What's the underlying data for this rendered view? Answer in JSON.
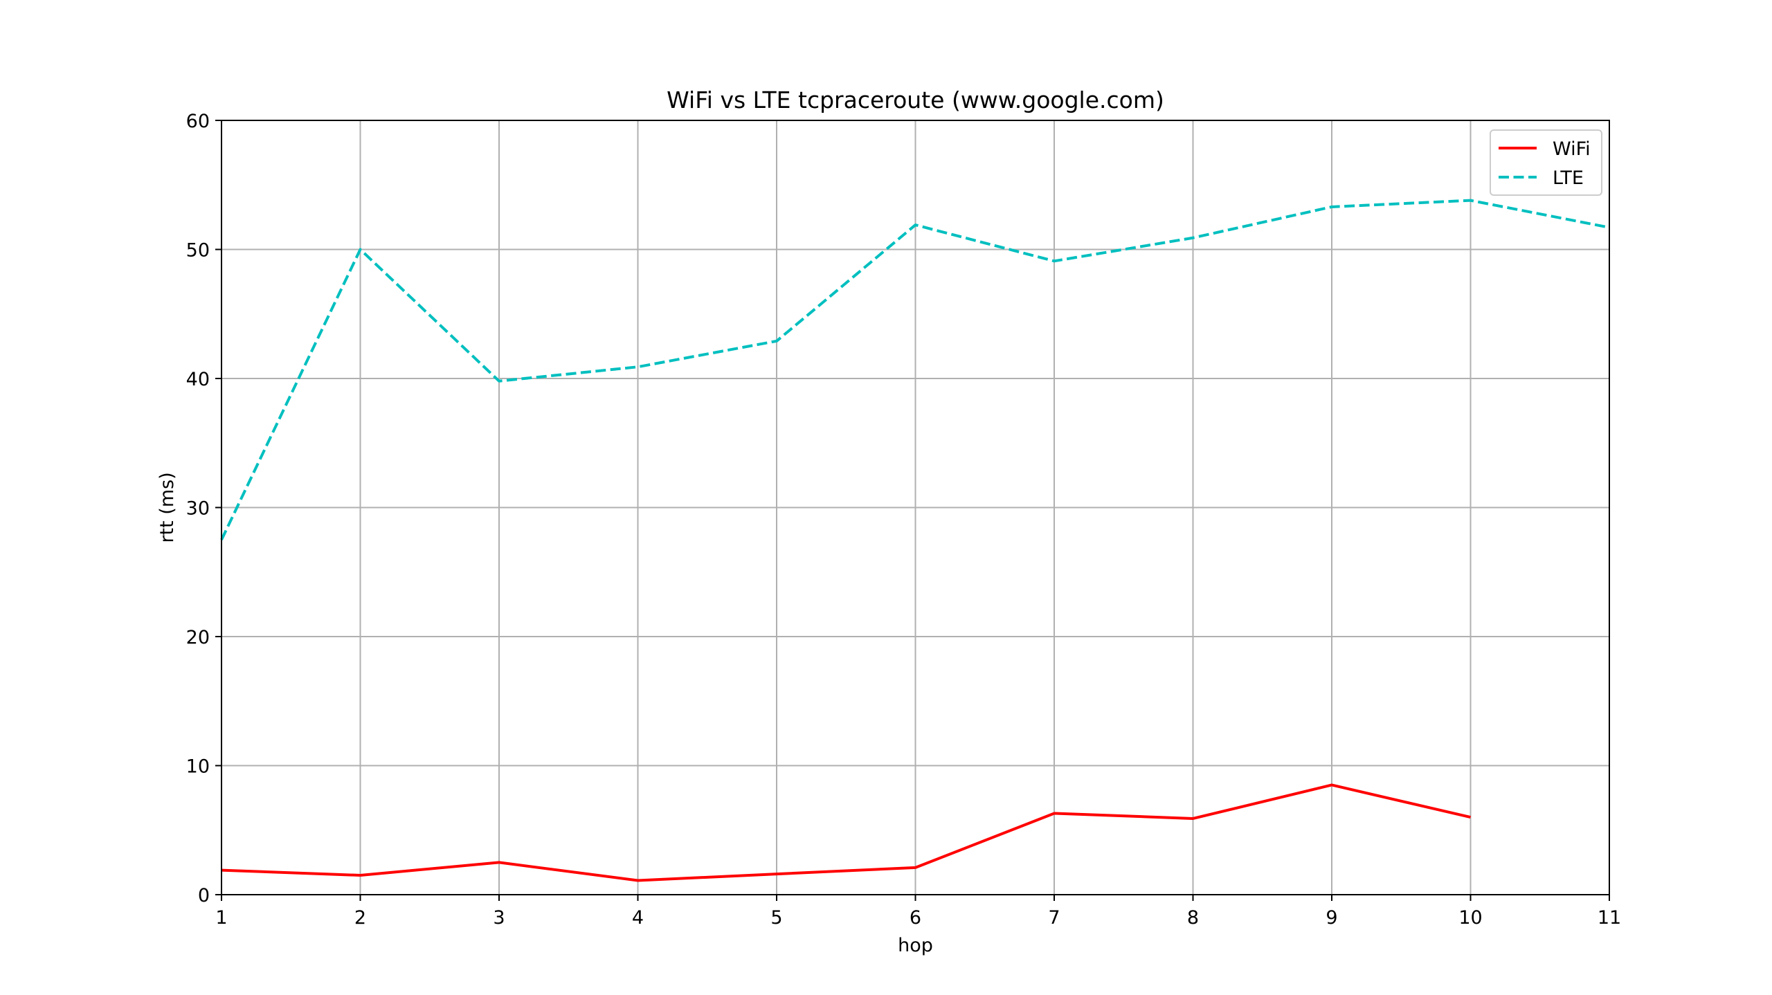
{
  "chart_data": {
    "type": "line",
    "title": "WiFi vs LTE tcpraceroute (www.google.com)",
    "xlabel": "hop",
    "ylabel": "rtt (ms)",
    "xlim": [
      1,
      11
    ],
    "ylim": [
      0,
      60
    ],
    "xticks": [
      "1",
      "2",
      "3",
      "4",
      "5",
      "6",
      "7",
      "8",
      "9",
      "10",
      "11"
    ],
    "yticks": [
      "0",
      "10",
      "20",
      "30",
      "40",
      "50",
      "60"
    ],
    "grid": true,
    "legend_position": "top-right",
    "series": [
      {
        "name": "WiFi",
        "color": "#ff0000",
        "style": "solid",
        "x": [
          1,
          2,
          3,
          4,
          5,
          6,
          7,
          8,
          9,
          10
        ],
        "values": [
          1.9,
          1.5,
          2.5,
          1.1,
          1.6,
          2.1,
          6.3,
          5.9,
          8.5,
          6.0
        ]
      },
      {
        "name": "LTE",
        "color": "#00bfbf",
        "style": "dashed",
        "x": [
          1,
          2,
          3,
          4,
          5,
          6,
          7,
          8,
          9,
          10,
          11
        ],
        "values": [
          27.5,
          50.0,
          39.8,
          40.9,
          42.9,
          51.9,
          49.1,
          50.9,
          53.3,
          53.8,
          51.7
        ]
      }
    ]
  }
}
